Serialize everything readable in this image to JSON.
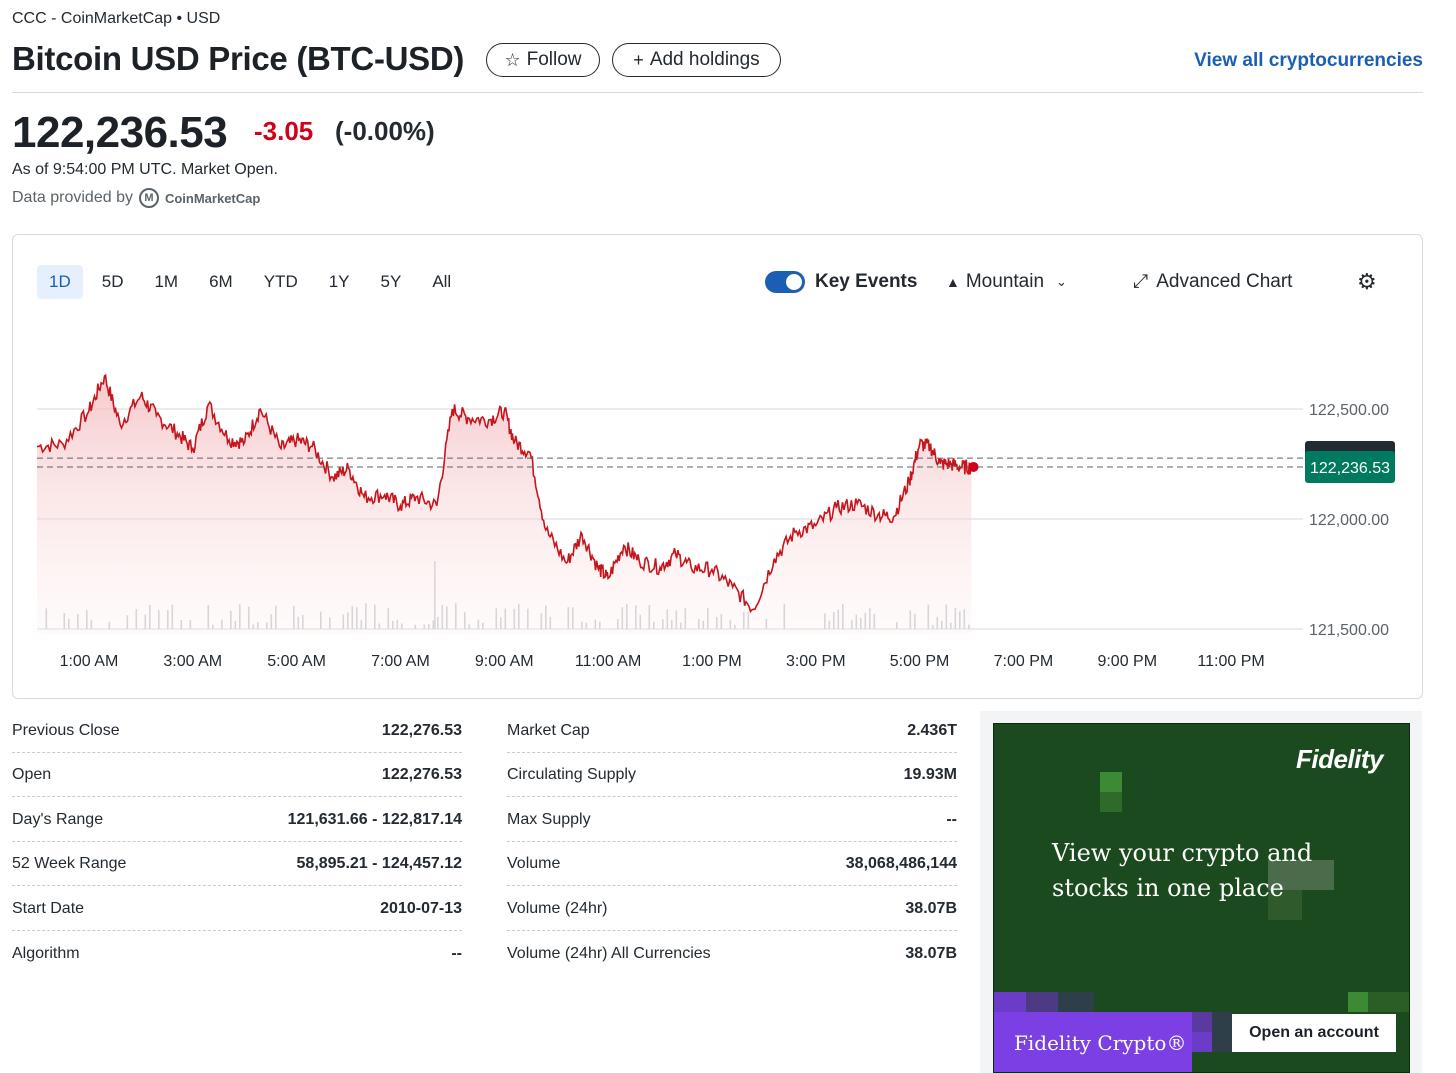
{
  "header": {
    "exchange": "CCC - CoinMarketCap • USD",
    "title": "Bitcoin USD Price (BTC-USD)",
    "follow_label": "Follow",
    "add_holdings_label": "Add holdings",
    "view_all_label": "View all cryptocurrencies"
  },
  "quote": {
    "price": "122,236.53",
    "change": "-3.05",
    "change_pct": "(-0.00%)",
    "as_of": "As of 9:54:00 PM UTC. Market Open.",
    "provided_by": "Data provided by",
    "provider_name": "CoinMarketCap"
  },
  "chart_controls": {
    "ranges": [
      "1D",
      "5D",
      "1M",
      "6M",
      "YTD",
      "1Y",
      "5Y",
      "All"
    ],
    "active_range": "1D",
    "key_events_label": "Key Events",
    "key_events_on": true,
    "chart_type_label": "Mountain",
    "advanced_label": "Advanced Chart"
  },
  "chart_data": {
    "type": "area",
    "x_tick_labels": [
      "1:00 AM",
      "3:00 AM",
      "5:00 AM",
      "7:00 AM",
      "9:00 AM",
      "11:00 AM",
      "1:00 PM",
      "3:00 PM",
      "5:00 PM",
      "7:00 PM",
      "9:00 PM",
      "11:00 PM"
    ],
    "y_tick_labels": [
      "122,500.00",
      "122,000.00",
      "121,500.00"
    ],
    "y_ticks": [
      122500,
      122000,
      121500
    ],
    "ylim": [
      121500,
      122500
    ],
    "xlim_hours": [
      0,
      24
    ],
    "previous_close": 122276.53,
    "current_price_label": "122,236.53",
    "current_price": 122236.53,
    "series": [
      {
        "hours": [
          0,
          0.5,
          1,
          1.3,
          1.6,
          2.0,
          2.3,
          2.7,
          3.0,
          3.3,
          3.7,
          4.0,
          4.3,
          4.7,
          5.0,
          5.3,
          5.7,
          6.0,
          6.3,
          6.7,
          7.0,
          7.3,
          7.7,
          8.0,
          8.3,
          8.7,
          9.0,
          9.2,
          9.5,
          9.8,
          10.2,
          10.5,
          10.8,
          11.0,
          11.3,
          11.6,
          12.0,
          12.3,
          12.6,
          13.0,
          13.4,
          13.8,
          14.2,
          14.6,
          15.0,
          15.4,
          15.8,
          16.2,
          16.5,
          16.8,
          17.0,
          17.2,
          17.4,
          17.6,
          17.8,
          18.0
        ],
        "values": [
          122330,
          122340,
          122490,
          122650,
          122430,
          122560,
          122470,
          122390,
          122320,
          122520,
          122360,
          122350,
          122500,
          122320,
          122360,
          122330,
          122190,
          122230,
          122100,
          122110,
          122060,
          122100,
          122060,
          122500,
          122460,
          122450,
          122490,
          122350,
          122300,
          121950,
          121800,
          121930,
          121780,
          121730,
          121880,
          121810,
          121780,
          121840,
          121780,
          121770,
          121690,
          121590,
          121820,
          121940,
          121970,
          122050,
          122070,
          122020,
          122010,
          122170,
          122340,
          122330,
          122250,
          122250,
          122236,
          122236
        ]
      }
    ],
    "volume_note": ""
  },
  "stats": {
    "left": [
      {
        "label": "Previous Close",
        "value": "122,276.53"
      },
      {
        "label": "Open",
        "value": "122,276.53"
      },
      {
        "label": "Day's Range",
        "value": "121,631.66 - 122,817.14"
      },
      {
        "label": "52 Week Range",
        "value": "58,895.21 - 124,457.12"
      },
      {
        "label": "Start Date",
        "value": "2010-07-13"
      },
      {
        "label": "Algorithm",
        "value": "--"
      }
    ],
    "right": [
      {
        "label": "Market Cap",
        "value": "2.436T"
      },
      {
        "label": "Circulating Supply",
        "value": "19.93M"
      },
      {
        "label": "Max Supply",
        "value": "--"
      },
      {
        "label": "Volume",
        "value": "38,068,486,144"
      },
      {
        "label": "Volume (24hr)",
        "value": "38.07B"
      },
      {
        "label": "Volume (24hr) All Currencies",
        "value": "38.07B"
      }
    ]
  },
  "ad": {
    "brand": "Fidelity",
    "headline_line1": "View your crypto and",
    "headline_line2": "stocks in one place",
    "product": "Fidelity Crypto®",
    "cta": "Open an account"
  },
  "colors": {
    "negative": "#d0021b",
    "line": "#c4161c",
    "accent": "#1a5fb4",
    "price_badge": "#007a5e",
    "ad_bg": "#1c4a1f",
    "ad_purple": "#7b3fe4"
  }
}
